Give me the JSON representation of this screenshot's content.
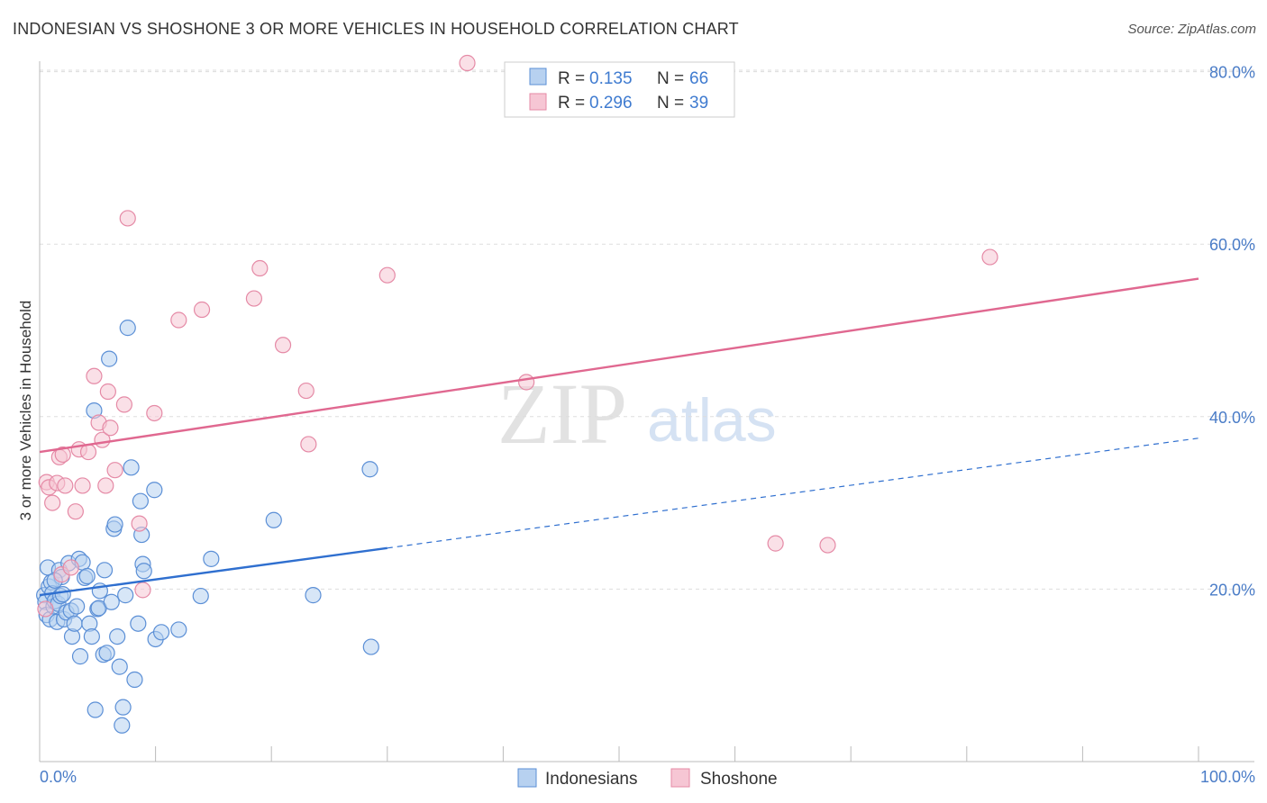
{
  "header": {
    "title": "INDONESIAN VS SHOSHONE 3 OR MORE VEHICLES IN HOUSEHOLD CORRELATION CHART",
    "source": "Source: ZipAtlas.com"
  },
  "watermark": {
    "zip": "ZIP",
    "atlas": "atlas"
  },
  "colors": {
    "indonesian_fill": "#b7d1f0",
    "indonesian_stroke": "#5b8fd6",
    "indonesian_line": "#2f6fcf",
    "shoshone_fill": "#f6c6d4",
    "shoshone_stroke": "#e58aa6",
    "shoshone_line": "#e06890",
    "tick_text": "#4a7cc7",
    "grid": "#dddddd"
  },
  "legend": {
    "rows": [
      {
        "r_label": "R =",
        "r_value": "0.135",
        "n_label": "N =",
        "n_value": "66"
      },
      {
        "r_label": "R =",
        "r_value": "0.296",
        "n_label": "N =",
        "n_value": "39"
      }
    ]
  },
  "bottom_legend": {
    "items": [
      "Indonesians",
      "Shoshone"
    ]
  },
  "chart_data": {
    "type": "scatter",
    "title": "INDONESIAN VS SHOSHONE 3 OR MORE VEHICLES IN HOUSEHOLD CORRELATION CHART",
    "xlabel": "",
    "ylabel": "3 or more Vehicles in Household",
    "xlim": [
      0,
      100
    ],
    "ylim": [
      0,
      82
    ],
    "x_tick_labels": {
      "left": "0.0%",
      "right": "100.0%"
    },
    "y_ticks": [
      20,
      40,
      60,
      80
    ],
    "y_tick_labels": [
      "20.0%",
      "40.0%",
      "60.0%",
      "80.0%"
    ],
    "grid": true,
    "series": [
      {
        "name": "Indonesians",
        "r": 0.135,
        "n": 66,
        "trend": {
          "x0": 0,
          "y0": 19.3,
          "x1": 100,
          "y1": 37.5,
          "solid_until_x": 30
        },
        "points": [
          [
            0.4,
            19.3
          ],
          [
            0.5,
            18.5
          ],
          [
            0.6,
            17.0
          ],
          [
            0.7,
            22.5
          ],
          [
            0.8,
            20.3
          ],
          [
            0.9,
            16.5
          ],
          [
            1.0,
            20.8
          ],
          [
            1.1,
            19.5
          ],
          [
            1.2,
            18.0
          ],
          [
            1.3,
            18.6
          ],
          [
            1.5,
            16.2
          ],
          [
            1.6,
            18.3
          ],
          [
            1.7,
            22.2
          ],
          [
            1.8,
            19.2
          ],
          [
            1.9,
            21.4
          ],
          [
            2.0,
            19.4
          ],
          [
            2.1,
            16.5
          ],
          [
            2.3,
            17.3
          ],
          [
            2.5,
            23.0
          ],
          [
            2.7,
            17.5
          ],
          [
            2.8,
            14.5
          ],
          [
            3.0,
            16.0
          ],
          [
            3.2,
            18.0
          ],
          [
            3.4,
            23.5
          ],
          [
            3.5,
            12.2
          ],
          [
            3.7,
            23.1
          ],
          [
            3.9,
            21.3
          ],
          [
            4.1,
            21.5
          ],
          [
            4.3,
            16.0
          ],
          [
            4.5,
            14.5
          ],
          [
            4.7,
            40.7
          ],
          [
            4.8,
            6.0
          ],
          [
            5.0,
            17.7
          ],
          [
            5.1,
            17.8
          ],
          [
            5.2,
            19.8
          ],
          [
            5.5,
            12.4
          ],
          [
            5.6,
            22.2
          ],
          [
            5.8,
            12.6
          ],
          [
            6.0,
            46.7
          ],
          [
            6.2,
            18.5
          ],
          [
            6.4,
            27.0
          ],
          [
            6.5,
            27.5
          ],
          [
            6.7,
            14.5
          ],
          [
            6.9,
            11.0
          ],
          [
            7.1,
            4.2
          ],
          [
            7.2,
            6.3
          ],
          [
            7.4,
            19.3
          ],
          [
            7.6,
            50.3
          ],
          [
            7.9,
            34.1
          ],
          [
            8.2,
            9.5
          ],
          [
            8.5,
            16.0
          ],
          [
            8.7,
            30.2
          ],
          [
            8.8,
            26.3
          ],
          [
            8.9,
            22.9
          ],
          [
            9.0,
            22.1
          ],
          [
            9.9,
            31.5
          ],
          [
            10.0,
            14.2
          ],
          [
            10.5,
            15.0
          ],
          [
            12.0,
            15.3
          ],
          [
            13.9,
            19.2
          ],
          [
            14.8,
            23.5
          ],
          [
            20.2,
            28.0
          ],
          [
            23.6,
            19.3
          ],
          [
            28.5,
            33.9
          ],
          [
            28.6,
            13.3
          ],
          [
            1.3,
            21.0
          ]
        ]
      },
      {
        "name": "Shoshone",
        "r": 0.296,
        "n": 39,
        "trend": {
          "x0": 0,
          "y0": 35.9,
          "x1": 100,
          "y1": 56.0,
          "solid_until_x": 100
        },
        "points": [
          [
            0.5,
            17.7
          ],
          [
            0.6,
            32.4
          ],
          [
            0.8,
            31.8
          ],
          [
            1.1,
            30.0
          ],
          [
            1.5,
            32.3
          ],
          [
            1.7,
            35.3
          ],
          [
            1.9,
            21.7
          ],
          [
            2.0,
            35.6
          ],
          [
            2.2,
            32.0
          ],
          [
            2.7,
            22.5
          ],
          [
            3.1,
            29.0
          ],
          [
            3.4,
            36.2
          ],
          [
            3.7,
            32.0
          ],
          [
            4.2,
            35.9
          ],
          [
            4.7,
            44.7
          ],
          [
            5.1,
            39.3
          ],
          [
            5.4,
            37.3
          ],
          [
            5.7,
            32.0
          ],
          [
            5.9,
            42.9
          ],
          [
            6.1,
            38.7
          ],
          [
            6.5,
            33.8
          ],
          [
            7.3,
            41.4
          ],
          [
            7.6,
            63.0
          ],
          [
            8.6,
            27.6
          ],
          [
            8.9,
            19.9
          ],
          [
            9.9,
            40.4
          ],
          [
            12.0,
            51.2
          ],
          [
            14.0,
            52.4
          ],
          [
            18.5,
            53.7
          ],
          [
            19.0,
            57.2
          ],
          [
            21.0,
            48.3
          ],
          [
            23.0,
            43.0
          ],
          [
            23.2,
            36.8
          ],
          [
            30.0,
            56.4
          ],
          [
            36.9,
            81.0
          ],
          [
            42.0,
            44.0
          ],
          [
            63.5,
            25.3
          ],
          [
            68.0,
            25.1
          ],
          [
            82.0,
            58.5
          ]
        ]
      }
    ]
  }
}
